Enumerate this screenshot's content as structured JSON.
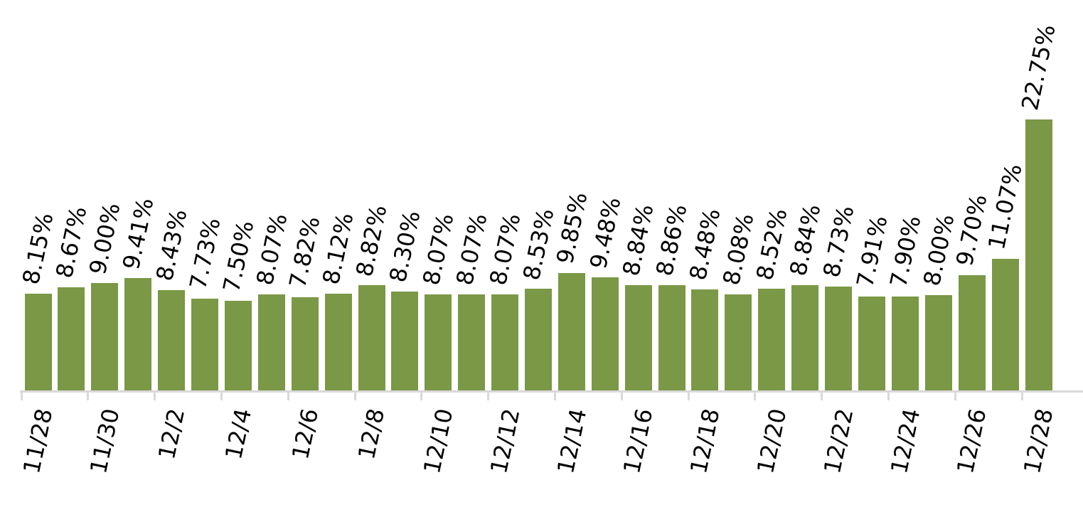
{
  "chart_data": {
    "type": "bar",
    "title": "",
    "xlabel": "",
    "ylabel": "",
    "ylim": [
      0,
      23
    ],
    "grid": false,
    "value_axis_visible": false,
    "legend": null,
    "data_label_style": "outside end, percent with 2 decimals, rotated ~80deg counterclockwise",
    "tick_label_style": "rotated ~80deg counterclockwise, every other category labeled",
    "colors": {
      "bar_fill": "#7A9845",
      "axis_line": "#D9D9D9",
      "tick_mark": "#D9D9D9",
      "label_text": "#000000",
      "background": "#FFFFFF"
    },
    "categories": [
      "11/28",
      "",
      "11/30",
      "",
      "12/2",
      "",
      "12/4",
      "",
      "12/6",
      "",
      "12/8",
      "",
      "12/10",
      "",
      "12/12",
      "",
      "12/14",
      "",
      "12/16",
      "",
      "12/18",
      "",
      "12/20",
      "",
      "12/22",
      "",
      "12/24",
      "",
      "12/26",
      "",
      "12/28"
    ],
    "values": [
      8.15,
      8.67,
      9.0,
      9.41,
      8.43,
      7.73,
      7.5,
      8.07,
      7.82,
      8.12,
      8.82,
      8.3,
      8.07,
      8.07,
      8.07,
      8.53,
      9.85,
      9.48,
      8.84,
      8.86,
      8.48,
      8.08,
      8.52,
      8.84,
      8.73,
      7.91,
      7.9,
      8.0,
      9.7,
      11.07,
      22.75
    ],
    "data_labels": [
      "8.15%",
      "8.67%",
      "9.00%",
      "9.41%",
      "8.43%",
      "7.73%",
      "7.50%",
      "8.07%",
      "7.82%",
      "8.12%",
      "8.82%",
      "8.30%",
      "8.07%",
      "8.07%",
      "8.07%",
      "8.53%",
      "9.85%",
      "9.48%",
      "8.84%",
      "8.86%",
      "8.48%",
      "8.08%",
      "8.52%",
      "8.84%",
      "8.73%",
      "7.91%",
      "7.90%",
      "8.00%",
      "9.70%",
      "11.07%",
      "22.75%"
    ],
    "visible_x_tick_labels": [
      "11/28",
      "11/30",
      "12/2",
      "12/4",
      "12/6",
      "12/8",
      "12/10",
      "12/12",
      "12/14",
      "12/16",
      "12/18",
      "12/20",
      "12/22",
      "12/24",
      "12/26",
      "12/28"
    ]
  }
}
